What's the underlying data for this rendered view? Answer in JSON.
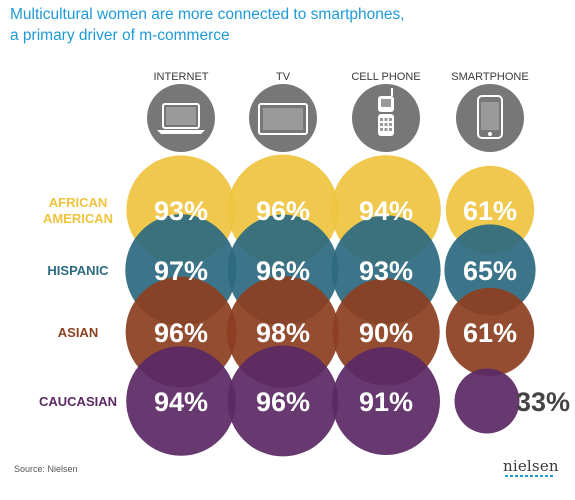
{
  "title_lines": [
    "Multicultural women are more connected to smartphones,",
    "a primary driver of m-commerce"
  ],
  "source": "Source: Nielsen",
  "logo_text": "nielsen",
  "icons": [
    "laptop-icon",
    "tv-icon",
    "flip-phone-icon",
    "smartphone-icon"
  ],
  "chart_data": {
    "type": "bubble-matrix",
    "title": "Multicultural women are more connected to smartphones, a primary driver of m-commerce",
    "columns": [
      "INTERNET",
      "TV",
      "CELL PHONE",
      "SMARTPHONE"
    ],
    "rows": [
      {
        "label": [
          "AFRICAN",
          "AMERICAN"
        ],
        "color": "#eec43f",
        "values": [
          93,
          96,
          94,
          61
        ]
      },
      {
        "label": [
          "HISPANIC"
        ],
        "color": "#2d6b80",
        "values": [
          97,
          96,
          93,
          65
        ]
      },
      {
        "label": [
          "ASIAN"
        ],
        "color": "#8c4020",
        "values": [
          96,
          98,
          90,
          61
        ]
      },
      {
        "label": [
          "CAUCASIAN"
        ],
        "color": "#5b2a65",
        "values": [
          94,
          96,
          91,
          33
        ]
      }
    ],
    "value_suffix": "%",
    "label_colors": [
      "#eec43f",
      "#2d6b80",
      "#8c4020",
      "#5b2a65"
    ]
  }
}
